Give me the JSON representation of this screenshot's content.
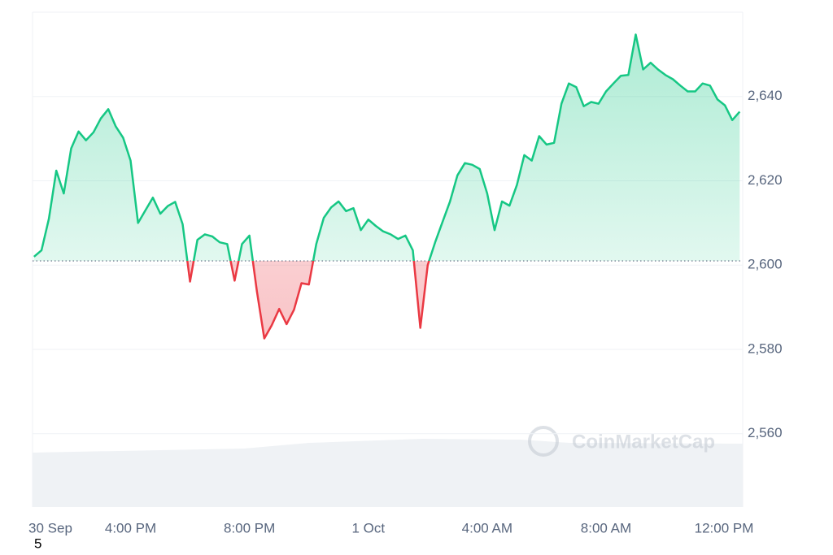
{
  "chart_data": {
    "type": "line",
    "watermark": "CoinMarketCap",
    "annotation": "5",
    "baseline": 2601,
    "x": [
      12.75,
      13,
      13.25,
      13.5,
      13.75,
      14,
      14.25,
      14.5,
      14.75,
      15,
      15.25,
      15.5,
      15.75,
      16,
      16.25,
      16.5,
      16.75,
      17,
      17.25,
      17.5,
      17.75,
      18,
      18.25,
      18.5,
      18.75,
      19,
      19.25,
      19.5,
      19.75,
      20,
      20.25,
      20.5,
      20.75,
      21,
      21.25,
      21.5,
      21.75,
      22,
      22.25,
      22.5,
      22.75,
      23,
      23.25,
      23.5,
      23.75,
      24,
      24.25,
      24.5,
      24.75,
      25,
      25.25,
      25.5,
      25.75,
      26,
      26.25,
      26.5,
      26.75,
      27,
      27.25,
      27.5,
      27.75,
      28,
      28.25,
      28.5,
      28.75,
      29,
      29.25,
      29.5,
      29.75,
      30,
      30.25,
      30.5,
      30.75,
      31,
      31.25,
      31.5,
      31.75,
      32,
      32.25,
      32.5,
      32.75,
      33,
      33.25,
      33.5,
      33.75,
      34,
      34.25,
      34.5,
      34.75,
      35,
      35.25,
      35.5,
      35.75,
      36,
      36.25,
      36.5
    ],
    "series": [
      {
        "color": "#16c784",
        "below_color": "#ea3943",
        "values": [
          2602,
          2603.5,
          2611,
          2622.4,
          2617,
          2627.7,
          2631.7,
          2629.6,
          2631.5,
          2634.8,
          2637,
          2632.9,
          2630.2,
          2624.8,
          2610,
          2613,
          2616,
          2612.2,
          2614,
          2615,
          2609.7,
          2596.1,
          2606,
          2607.3,
          2606.8,
          2605.4,
          2605,
          2596.3,
          2605,
          2607,
          2593.8,
          2582.6,
          2585.7,
          2589.6,
          2586,
          2589.4,
          2595.7,
          2595.4,
          2605,
          2611.2,
          2613.7,
          2615.1,
          2612.8,
          2613.5,
          2608.3,
          2610.8,
          2609.3,
          2608,
          2607.3,
          2606.2,
          2607,
          2603.5,
          2585.1,
          2600,
          2605.4,
          2610.3,
          2615.1,
          2621.3,
          2624.2,
          2623.8,
          2622.8,
          2617,
          2608.3,
          2615.1,
          2614.1,
          2619,
          2626.1,
          2624.8,
          2630.6,
          2628.6,
          2629,
          2638.3,
          2643.1,
          2642.2,
          2637.7,
          2638.7,
          2638.3,
          2641.2,
          2643.1,
          2644.9,
          2645.1,
          2654.7,
          2646.4,
          2648,
          2646.4,
          2645.1,
          2644.1,
          2642.6,
          2641.2,
          2641.2,
          2643.1,
          2642.6,
          2639.3,
          2637.9,
          2634.4,
          2636.4
        ]
      }
    ],
    "xlim": [
      12.7,
      36.6
    ],
    "xticks": [
      {
        "value": 12.7,
        "label": "30 Sep"
      },
      {
        "value": 16,
        "label": "4:00 PM"
      },
      {
        "value": 20,
        "label": "8:00 PM"
      },
      {
        "value": 24,
        "label": "1 Oct"
      },
      {
        "value": 28,
        "label": "4:00 AM"
      },
      {
        "value": 32,
        "label": "8:00 AM"
      },
      {
        "value": 36,
        "label": "12:00 PM"
      }
    ],
    "ylim": [
      2542.6,
      2660
    ],
    "yticks": [
      {
        "value": 2560,
        "label": "2,560"
      },
      {
        "value": 2580,
        "label": "2,580"
      },
      {
        "value": 2600,
        "label": "2,600"
      },
      {
        "value": 2620,
        "label": "2,620"
      },
      {
        "value": 2640,
        "label": "2,640"
      }
    ],
    "grid": true
  }
}
